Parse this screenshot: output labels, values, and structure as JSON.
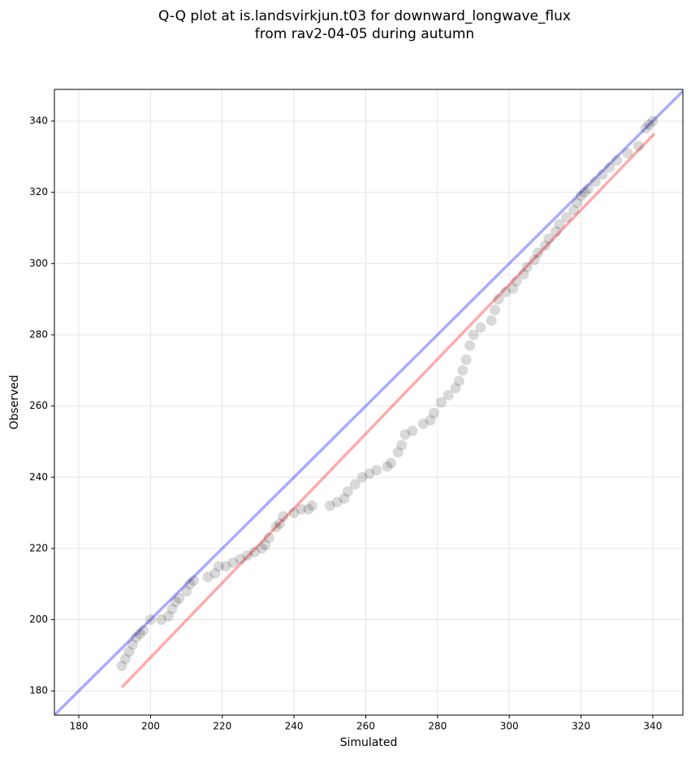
{
  "chart_data": {
    "type": "scatter",
    "title": [
      "Q-Q plot at is.landsvirkjun.t03 for downward_longwave_flux",
      "from rav2-04-05 during autumn"
    ],
    "xlabel": "Simulated",
    "ylabel": "Observed",
    "xlim": [
      173.2,
      348.4
    ],
    "ylim": [
      173.2,
      348.9
    ],
    "xticks": [
      180,
      200,
      220,
      240,
      260,
      280,
      300,
      320,
      340
    ],
    "yticks": [
      180,
      200,
      220,
      240,
      260,
      280,
      300,
      320,
      340
    ],
    "grid": true,
    "points": {
      "color": "#000000",
      "x": [
        192,
        193,
        194,
        195,
        196,
        197,
        198,
        200,
        203,
        205,
        206,
        207,
        208,
        210,
        211,
        212,
        216,
        218,
        219,
        221,
        223,
        225,
        227,
        229,
        231,
        232,
        233,
        235,
        236,
        237,
        240,
        242,
        244,
        245,
        250,
        252,
        254,
        255,
        257,
        259,
        261,
        263,
        266,
        267,
        269,
        270,
        271,
        273,
        276,
        278,
        279,
        281,
        283,
        285,
        286,
        287,
        288,
        289,
        290,
        292,
        295,
        296,
        297,
        299,
        301,
        302,
        304,
        305,
        307,
        308,
        310,
        311,
        313,
        314,
        316,
        318,
        319,
        320,
        321,
        322,
        324,
        326,
        328,
        330,
        333,
        336,
        338,
        339,
        340
      ],
      "y": [
        187,
        189,
        191,
        193,
        195,
        196,
        197,
        200,
        200,
        201,
        203,
        205,
        206,
        208,
        210,
        211,
        212,
        213,
        215,
        215,
        216,
        217,
        218,
        219,
        220,
        221,
        223,
        226,
        227,
        229,
        230,
        231,
        231,
        232,
        232,
        233,
        234,
        236,
        238,
        240,
        241,
        242,
        243,
        244,
        247,
        249,
        252,
        253,
        255,
        256,
        258,
        261,
        263,
        265,
        267,
        270,
        273,
        277,
        280,
        282,
        284,
        287,
        290,
        292,
        293,
        295,
        297,
        299,
        301,
        303,
        305,
        307,
        309,
        311,
        313,
        315,
        317,
        319,
        320,
        321,
        323,
        325,
        327,
        329,
        331,
        333,
        338,
        339,
        340
      ]
    },
    "lines": [
      {
        "color": "#0000ff",
        "x": [
          173.2,
          348.4
        ],
        "y": [
          173.2,
          348.4
        ]
      },
      {
        "color": "#ff0000",
        "x": [
          192,
          340.5
        ],
        "y": [
          181,
          336.5
        ]
      }
    ]
  }
}
